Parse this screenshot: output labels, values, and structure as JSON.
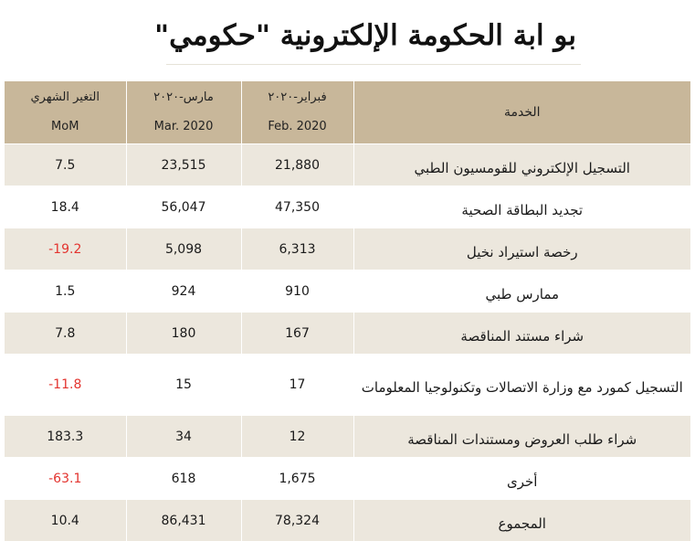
{
  "title": "بو ابة الحكومة الإلكترونية \"حكومي\"",
  "header": {
    "mom_ar": "التغير الشهري",
    "mom_en": "MoM",
    "mar_ar": "مارس-٢٠٢٠",
    "mar_en": "Mar. 2020",
    "feb_ar": "فبراير-٢٠٢٠",
    "feb_en": "Feb. 2020",
    "service": "الخدمة"
  },
  "rows": [
    {
      "service": "التسجيل الإلكتروني للقومسيون الطبي",
      "feb": "21,880",
      "mar": "23,515",
      "mom": "7.5"
    },
    {
      "service": "تجديد البطاقة الصحية",
      "feb": "47,350",
      "mar": "56,047",
      "mom": "18.4"
    },
    {
      "service": "رخصة استيراد نخيل",
      "feb": "6,313",
      "mar": "5,098",
      "mom": "-19.2"
    },
    {
      "service": "ممارس طبي",
      "feb": "910",
      "mar": "924",
      "mom": "1.5"
    },
    {
      "service": "شراء مستند المناقصة",
      "feb": "167",
      "mar": "180",
      "mom": "7.8"
    },
    {
      "service": "التسجيل كمورد مع وزارة الاتصالات وتكنولوجيا المعلومات",
      "feb": "17",
      "mar": "15",
      "mom": "-11.8"
    },
    {
      "service": "شراء طلب العروض ومستندات المناقصة",
      "feb": "12",
      "mar": "34",
      "mom": "183.3"
    },
    {
      "service": "أخرى",
      "feb": "1,675",
      "mar": "618",
      "mom": "-63.1"
    },
    {
      "service": "المجموع",
      "feb": "78,324",
      "mar": "86,431",
      "mom": "10.4"
    }
  ],
  "colors": {
    "header_bg": "#c8b79a",
    "stripe_bg": "#ece7dd",
    "negative": "#e3342f"
  }
}
